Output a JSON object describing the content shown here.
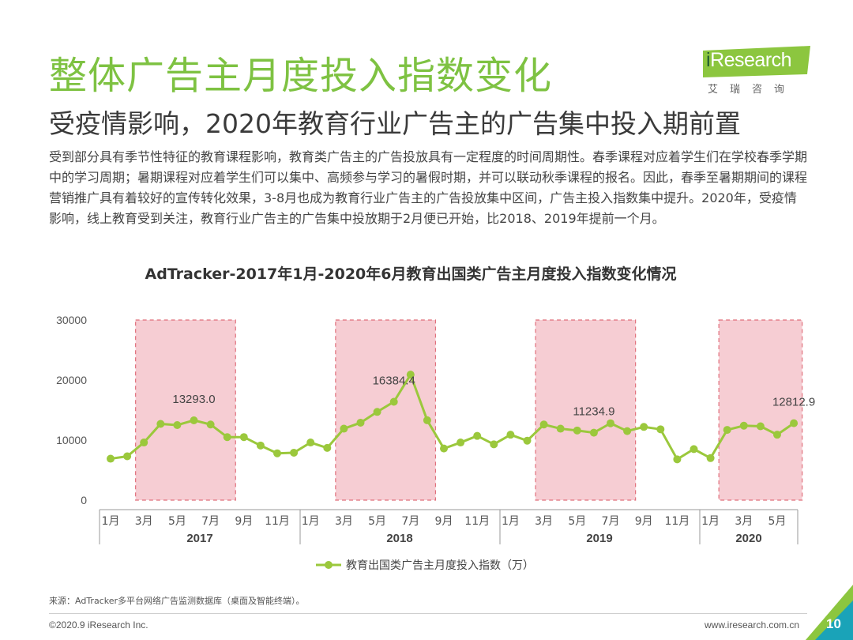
{
  "header": {
    "title": "整体广告主月度投入指数变化",
    "subtitle": "受疫情影响，2020年教育行业广告主的广告集中投入期前置"
  },
  "logo": {
    "brand_i": "i",
    "brand_rest": "Research",
    "brand_cn": "艾瑞咨询"
  },
  "body": {
    "text": "受到部分具有季节性特征的教育课程影响，教育类广告主的广告投放具有一定程度的时间周期性。春季课程对应着学生们在学校春季学期中的学习周期；暑期课程对应着学生们可以集中、高频参与学习的暑假时期，并可以联动秋季课程的报名。因此，春季至暑期期间的课程营销推广具有着较好的宣传转化效果，3-8月也成为教育行业广告主的广告投放集中区间，广告主投入指数集中提升。2020年，受疫情影响，线上教育受到关注，教育行业广告主的广告集中投放期于2月便已开始，比2018、2019年提前一个月。"
  },
  "chart_data": {
    "type": "line",
    "title": "AdTracker-2017年1月-2020年6月教育出国类广告主月度投入指数变化情况",
    "ylim": [
      0,
      30000
    ],
    "y_ticks": [
      "30000",
      "20000",
      "10000",
      "0"
    ],
    "x_tick_labels": [
      "1月",
      "3月",
      "5月",
      "7月",
      "9月",
      "11月",
      "1月",
      "3月",
      "5月",
      "7月",
      "9月",
      "11月",
      "1月",
      "3月",
      "5月",
      "7月",
      "9月",
      "11月",
      "1月",
      "3月",
      "5月"
    ],
    "years": [
      "2017",
      "2018",
      "2019",
      "2020"
    ],
    "legend_position": "bottom",
    "colors": {
      "line": "#9bc83c",
      "highlight_fill": "#f6cdd3",
      "highlight_border": "#e0707c"
    },
    "highlight_periods": [
      {
        "start": "2017-03",
        "end": "2017-08"
      },
      {
        "start": "2018-03",
        "end": "2018-08"
      },
      {
        "start": "2019-03",
        "end": "2019-08"
      },
      {
        "start": "2020-02",
        "end": "2020-06"
      }
    ],
    "series": [
      {
        "name": "教育出国类广告主月度投入指数（万）",
        "x": [
          "2017-01",
          "2017-02",
          "2017-03",
          "2017-04",
          "2017-05",
          "2017-06",
          "2017-07",
          "2017-08",
          "2017-09",
          "2017-10",
          "2017-11",
          "2017-12",
          "2018-01",
          "2018-02",
          "2018-03",
          "2018-04",
          "2018-05",
          "2018-06",
          "2018-07",
          "2018-08",
          "2018-09",
          "2018-10",
          "2018-11",
          "2018-12",
          "2019-01",
          "2019-02",
          "2019-03",
          "2019-04",
          "2019-05",
          "2019-06",
          "2019-07",
          "2019-08",
          "2019-09",
          "2019-10",
          "2019-11",
          "2019-12",
          "2020-01",
          "2020-02",
          "2020-03",
          "2020-04",
          "2020-05",
          "2020-06"
        ],
        "values": [
          6900,
          7300,
          9600,
          12700,
          12500,
          13293.0,
          12600,
          10500,
          10500,
          9100,
          7800,
          7900,
          9600,
          8700,
          11900,
          12900,
          14700,
          16384.4,
          20900,
          13300,
          8600,
          9600,
          10700,
          9300,
          10900,
          9900,
          12600,
          11900,
          11600,
          11234.9,
          12800,
          11500,
          12200,
          11800,
          6800,
          8500,
          7000,
          11700,
          12400,
          12300,
          10900,
          12812.9
        ]
      }
    ],
    "data_labels": [
      {
        "x": "2017-06",
        "text": "13293.0"
      },
      {
        "x": "2018-06",
        "text": "16384.4"
      },
      {
        "x": "2019-06",
        "text": "11234.9"
      },
      {
        "x": "2020-06",
        "text": "12812.9"
      }
    ]
  },
  "footer": {
    "source": "来源：AdTracker多平台网络广告监测数据库（桌面及智能终端）。",
    "copyright": "©2020.9 iResearch Inc.",
    "website": "www.iresearch.com.cn",
    "page_number": "10"
  }
}
